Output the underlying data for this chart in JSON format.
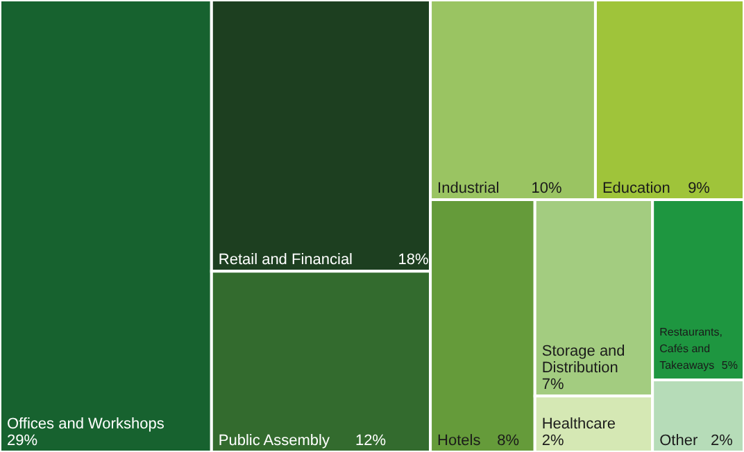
{
  "chart_data": {
    "type": "other",
    "categories": [
      "Offices and Workshops",
      "Retail and Financial",
      "Public Assembly",
      "Industrial",
      "Education",
      "Hotels",
      "Storage and Distribution",
      "Restaurants, Cafés and Takeaways",
      "Healthcare",
      "Other"
    ],
    "values": [
      29,
      18,
      12,
      10,
      9,
      8,
      7,
      5,
      2,
      2
    ],
    "value_labels": [
      "29%",
      "18%",
      "12%",
      "10%",
      "9%",
      "8%",
      "7%",
      "5%",
      "2%",
      "2%"
    ],
    "colors": [
      "#17622f",
      "#1d3f20",
      "#336b2e",
      "#9ac462",
      "#9fc43a",
      "#659b3a",
      "#a3cc80",
      "#1e9640",
      "#d5e8b4",
      "#b6dcb8"
    ]
  }
}
